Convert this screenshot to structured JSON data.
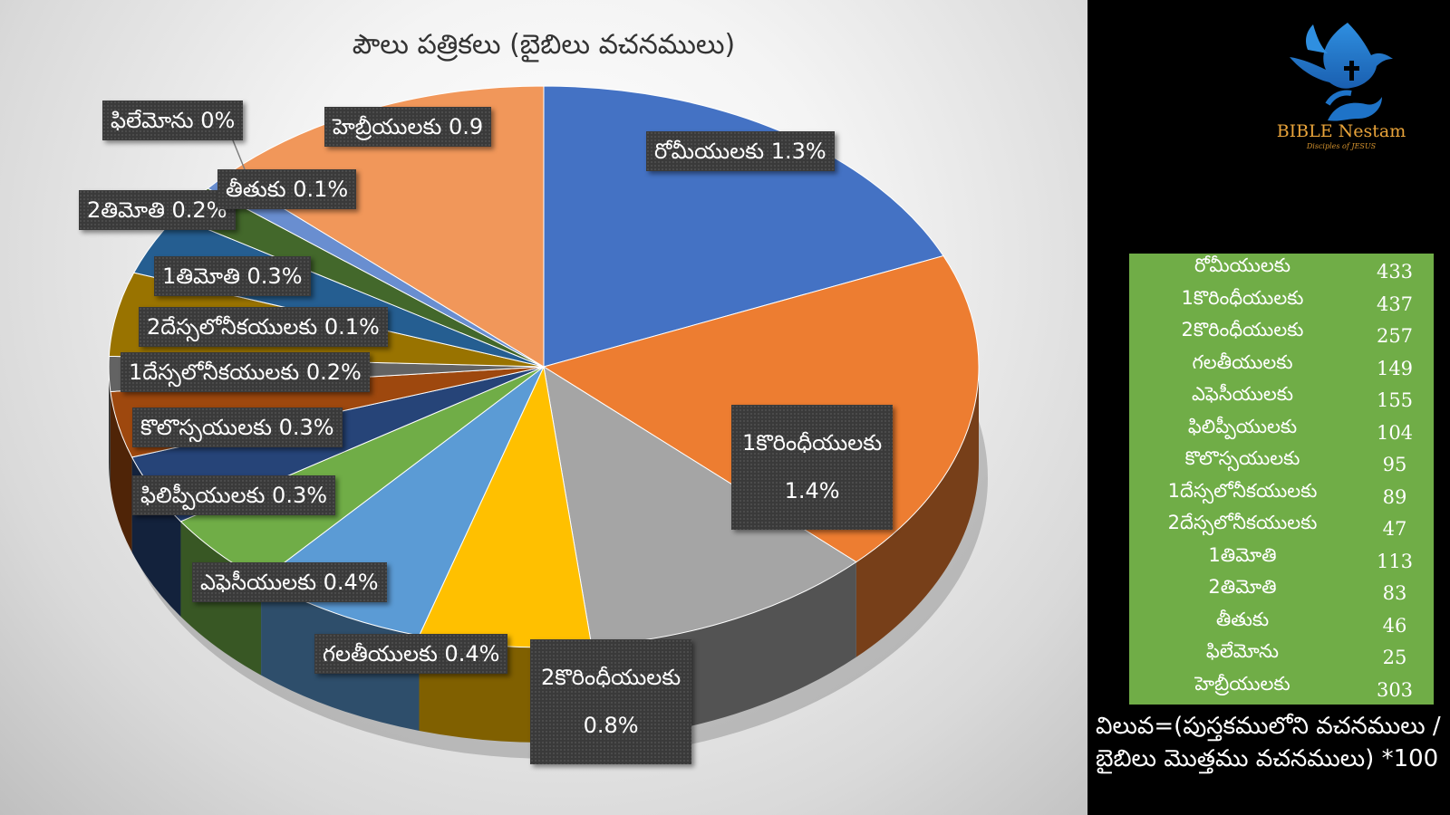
{
  "chart_data": {
    "type": "pie",
    "title": "పౌలు పత్రికలు (బైబిలు వచనములు)",
    "slices": [
      {
        "name": "రోమీయులకు",
        "value": 433,
        "label": "రోమీయులకు 1.3%",
        "color": "#4472c4"
      },
      {
        "name": "1కొరింధీయులకు",
        "value": 437,
        "label_line1": "1కొరింధీయులకు",
        "label_line2": "1.4%",
        "color": "#ed7d31"
      },
      {
        "name": "2కొరింధీయులకు",
        "value": 257,
        "label_line1": "2కొరింధీయులకు",
        "label_line2": "0.8%",
        "color": "#a5a5a5"
      },
      {
        "name": "గలతీయులకు",
        "value": 149,
        "label": "గలతీయులకు 0.4%",
        "color": "#ffc000"
      },
      {
        "name": "ఎఫెసీయులకు",
        "value": 155,
        "label": "ఎఫెసీయులకు 0.4%",
        "color": "#5b9bd5"
      },
      {
        "name": "ఫిలిప్పీయులకు",
        "value": 104,
        "label": "ఫిలిప్పీయులకు 0.3%",
        "color": "#70ad47"
      },
      {
        "name": "కొలొస్సయులకు",
        "value": 95,
        "label": "కొలొస్సయులకు 0.3%",
        "color": "#264478"
      },
      {
        "name": "1దేస్సలోనీకయులకు",
        "value": 89,
        "label": "1దేస్సలోనీకయులకు 0.2%",
        "color": "#9e480e"
      },
      {
        "name": "2దేస్సలోనీకయులకు",
        "value": 47,
        "label": "2దేస్సలోనీకయులకు 0.1%",
        "color": "#636363"
      },
      {
        "name": "1తిమోతి",
        "value": 113,
        "label": "1తిమోతి 0.3%",
        "color": "#997300"
      },
      {
        "name": "2తిమోతి",
        "value": 83,
        "label": "2తిమోతి 0.2%",
        "color": "#255e91"
      },
      {
        "name": "తీతుకు",
        "value": 46,
        "label": "తీతుకు 0.1%",
        "color": "#43682b"
      },
      {
        "name": "ఫిలేమోను",
        "value": 25,
        "label": "ఫిలేమోను 0%",
        "color": "#698ed0"
      },
      {
        "name": "హెబ్రీయులకు",
        "value": 303,
        "label": "హెబ్రీయులకు 0.9",
        "color": "#f1975a"
      }
    ]
  },
  "table": {
    "rows": [
      {
        "book": "రోమీయులకు",
        "verses": "433"
      },
      {
        "book": "1కొరింధీయులకు",
        "verses": "437"
      },
      {
        "book": "2కొరింధీయులకు",
        "verses": "257"
      },
      {
        "book": "గలతీయులకు",
        "verses": "149"
      },
      {
        "book": "ఎఫెసీయులకు",
        "verses": "155"
      },
      {
        "book": "ఫిలిప్పీయులకు",
        "verses": "104"
      },
      {
        "book": "కొలొస్సయులకు",
        "verses": "95"
      },
      {
        "book": "1దేస్సలోనీకయులకు",
        "verses": "89"
      },
      {
        "book": "2దేస్సలోనీకయులకు",
        "verses": "47"
      },
      {
        "book": "1తిమోతి",
        "verses": "113"
      },
      {
        "book": "2తిమోతి",
        "verses": "83"
      },
      {
        "book": "తీతుకు",
        "verses": "46"
      },
      {
        "book": "ఫిలేమోను",
        "verses": "25"
      },
      {
        "book": "హెబ్రీయులకు",
        "verses": "303"
      }
    ]
  },
  "formula": {
    "line1": "విలువ=(పుస్తకములోని వచనములు /",
    "line2": "బైబిలు మొత్తము వచనములు) *100"
  },
  "logo": {
    "title": "BIBLE Nestam",
    "subtitle": "Disciples of JESUS"
  }
}
